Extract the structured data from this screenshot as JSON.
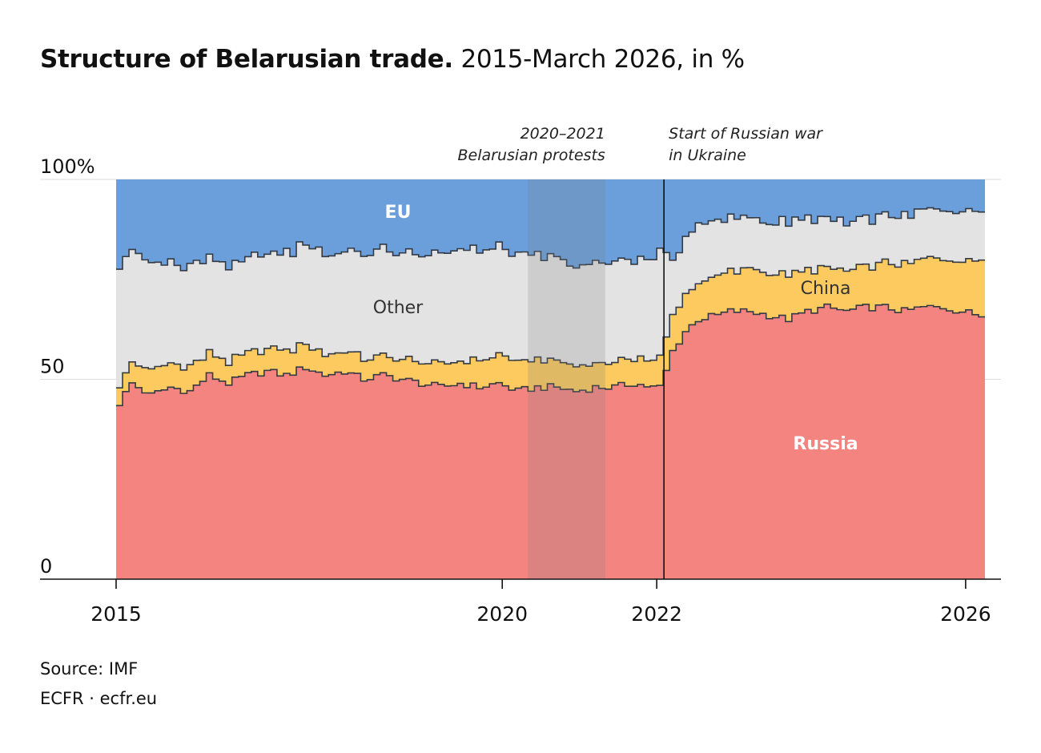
{
  "title": {
    "bold": "Structure of Belarusian trade.",
    "subtitle": "2015-March 2026, in %"
  },
  "footer": {
    "source": "Source: IMF",
    "brand": "ECFR · ecfr.eu"
  },
  "colors": {
    "russia": "#f48480",
    "china": "#fcca5e",
    "other": "#e3e3e3",
    "eu": "#6a9fdc",
    "outline": "#333a44",
    "shade": "#7f7f7f"
  },
  "chart_data": {
    "type": "area",
    "stacked": true,
    "step": true,
    "x_range": [
      "2015-01",
      "2026-03"
    ],
    "ylim": [
      0,
      100
    ],
    "y_ticks": [
      "0",
      "50",
      "100%"
    ],
    "y_tick_values": [
      0,
      50,
      100
    ],
    "x_ticks": [
      "2015",
      "2020",
      "2022",
      "2026"
    ],
    "x_tick_values": [
      "2015-01",
      "2020-01",
      "2022-01",
      "2026-01"
    ],
    "labels": {
      "eu": "EU",
      "other": "Other",
      "china": "China",
      "russia": "Russia"
    },
    "series": [
      {
        "key": "russia",
        "name": "Russia",
        "description": "share of total trade, %",
        "anchors": [
          [
            "2015-01",
            44
          ],
          [
            "2015-03",
            49
          ],
          [
            "2015-06",
            46
          ],
          [
            "2015-09",
            48
          ],
          [
            "2015-12",
            47
          ],
          [
            "2016-03",
            51
          ],
          [
            "2016-06",
            49
          ],
          [
            "2016-09",
            51
          ],
          [
            "2016-12",
            52
          ],
          [
            "2017-03",
            51
          ],
          [
            "2017-06",
            53
          ],
          [
            "2017-09",
            51
          ],
          [
            "2017-12",
            52
          ],
          [
            "2018-03",
            50
          ],
          [
            "2018-06",
            51
          ],
          [
            "2018-09",
            50
          ],
          [
            "2018-12",
            49
          ],
          [
            "2019-03",
            48
          ],
          [
            "2019-06",
            49
          ],
          [
            "2019-09",
            48
          ],
          [
            "2019-12",
            49
          ],
          [
            "2020-03",
            47
          ],
          [
            "2020-06",
            48
          ],
          [
            "2020-09",
            48
          ],
          [
            "2020-12",
            47
          ],
          [
            "2021-03",
            48
          ],
          [
            "2021-06",
            48
          ],
          [
            "2021-09",
            49
          ],
          [
            "2021-12",
            48
          ],
          [
            "2022-01",
            48
          ],
          [
            "2022-02",
            52
          ],
          [
            "2022-03",
            57
          ],
          [
            "2022-05",
            62
          ],
          [
            "2022-07",
            65
          ],
          [
            "2022-10",
            66
          ],
          [
            "2022-12",
            67
          ],
          [
            "2023-03",
            67
          ],
          [
            "2023-06",
            66
          ],
          [
            "2023-09",
            65
          ],
          [
            "2023-12",
            67
          ],
          [
            "2024-03",
            68
          ],
          [
            "2024-06",
            67
          ],
          [
            "2024-09",
            68
          ],
          [
            "2024-12",
            68
          ],
          [
            "2025-03",
            67
          ],
          [
            "2025-06",
            68
          ],
          [
            "2025-09",
            68
          ],
          [
            "2025-12",
            67
          ],
          [
            "2026-03",
            66
          ]
        ]
      },
      {
        "key": "china",
        "name": "China",
        "description": "share of total trade, %",
        "anchors": [
          [
            "2015-01",
            5
          ],
          [
            "2015-06",
            6
          ],
          [
            "2015-12",
            6
          ],
          [
            "2016-06",
            5
          ],
          [
            "2016-12",
            6
          ],
          [
            "2017-06",
            6
          ],
          [
            "2017-12",
            5
          ],
          [
            "2018-06",
            5
          ],
          [
            "2018-12",
            5
          ],
          [
            "2019-06",
            6
          ],
          [
            "2019-12",
            7
          ],
          [
            "2020-06",
            7
          ],
          [
            "2020-12",
            6
          ],
          [
            "2021-06",
            6
          ],
          [
            "2021-12",
            7
          ],
          [
            "2022-01",
            7
          ],
          [
            "2022-03",
            9
          ],
          [
            "2022-06",
            9
          ],
          [
            "2022-12",
            10
          ],
          [
            "2023-06",
            11
          ],
          [
            "2023-12",
            10
          ],
          [
            "2024-06",
            10
          ],
          [
            "2024-12",
            11
          ],
          [
            "2025-06",
            12
          ],
          [
            "2025-12",
            13
          ],
          [
            "2026-03",
            14
          ]
        ]
      },
      {
        "key": "other",
        "name": "Other",
        "description": "share of total trade, %",
        "anchors": [
          [
            "2015-01",
            30
          ],
          [
            "2015-06",
            26
          ],
          [
            "2015-12",
            25
          ],
          [
            "2016-06",
            24
          ],
          [
            "2016-12",
            24
          ],
          [
            "2017-06",
            25
          ],
          [
            "2017-12",
            25
          ],
          [
            "2018-06",
            27
          ],
          [
            "2018-12",
            27
          ],
          [
            "2019-06",
            28
          ],
          [
            "2019-12",
            27
          ],
          [
            "2020-06",
            26
          ],
          [
            "2020-12",
            25
          ],
          [
            "2021-06",
            25
          ],
          [
            "2021-12",
            25
          ],
          [
            "2022-01",
            27
          ],
          [
            "2022-02",
            21
          ],
          [
            "2022-03",
            13
          ],
          [
            "2022-06",
            15
          ],
          [
            "2022-12",
            13
          ],
          [
            "2023-06",
            13
          ],
          [
            "2023-12",
            13
          ],
          [
            "2024-06",
            12
          ],
          [
            "2024-12",
            12
          ],
          [
            "2025-06",
            12
          ],
          [
            "2025-12",
            12
          ],
          [
            "2026-03",
            12
          ]
        ]
      },
      {
        "key": "eu",
        "name": "EU",
        "description": "remainder to 100%"
      }
    ],
    "annotations": [
      {
        "type": "span",
        "from": "2020-05",
        "to": "2021-05",
        "lines": [
          "2020–2021",
          "Belarusian protests"
        ],
        "align": "right"
      },
      {
        "type": "line",
        "at": "2022-02",
        "lines": [
          "Start of Russian war",
          "in Ukraine"
        ],
        "align": "left"
      }
    ]
  }
}
